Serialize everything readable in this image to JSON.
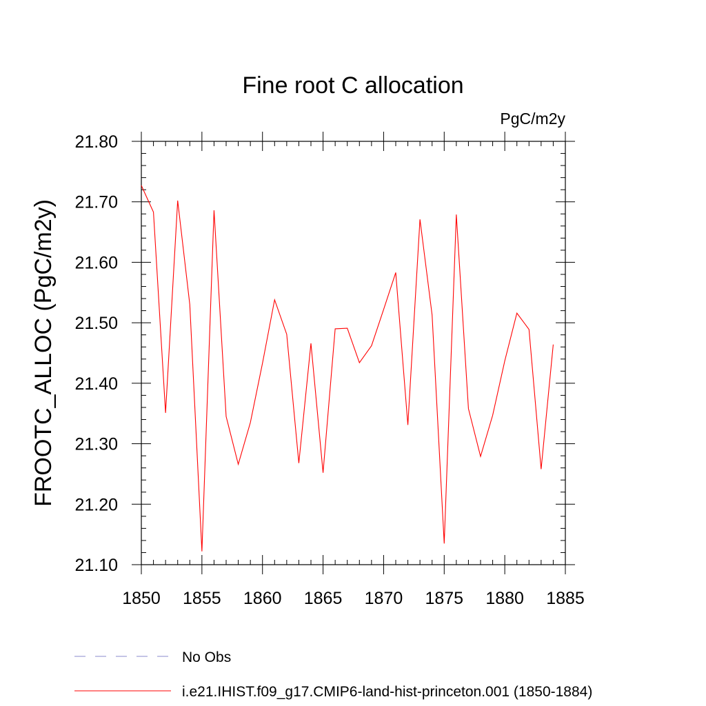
{
  "chart_data": {
    "type": "line",
    "title": "Fine root C allocation",
    "units_label": "PgC/m2y",
    "ylabel": "FROOTC_ALLOC  (PgC/m2y)",
    "xlabel": "",
    "xlim": [
      1850,
      1885
    ],
    "ylim": [
      21.1,
      21.8
    ],
    "x_ticks": [
      "1850",
      "1855",
      "1860",
      "1865",
      "1870",
      "1875",
      "1880",
      "1885"
    ],
    "y_ticks": [
      "21.10",
      "21.20",
      "21.30",
      "21.40",
      "21.50",
      "21.60",
      "21.70",
      "21.80"
    ],
    "grid": false,
    "series": [
      {
        "name": "i.e21.IHIST.f09_g17.CMIP6-land-hist-princeton.001 (1850-1884)",
        "color": "#ff0000",
        "style": "solid",
        "x": [
          1850,
          1851,
          1852,
          1853,
          1854,
          1855,
          1856,
          1857,
          1858,
          1859,
          1860,
          1861,
          1862,
          1863,
          1864,
          1865,
          1866,
          1867,
          1868,
          1869,
          1870,
          1871,
          1872,
          1873,
          1874,
          1875,
          1876,
          1877,
          1878,
          1879,
          1880,
          1881,
          1882,
          1883,
          1884
        ],
        "values": [
          21.727,
          21.683,
          21.351,
          21.702,
          21.53,
          21.122,
          21.686,
          21.345,
          21.266,
          21.335,
          21.433,
          21.538,
          21.481,
          21.268,
          21.466,
          21.252,
          21.49,
          21.491,
          21.434,
          21.462,
          21.522,
          21.583,
          21.331,
          21.671,
          21.513,
          21.135,
          21.679,
          21.358,
          21.279,
          21.347,
          21.437,
          21.516,
          21.489,
          21.258,
          21.464
        ]
      }
    ],
    "legend": {
      "placement": "bottom",
      "entries": [
        {
          "label": "No Obs",
          "color": "#8888cc",
          "style": "dashed"
        },
        {
          "label": "i.e21.IHIST.f09_g17.CMIP6-land-hist-princeton.001 (1850-1884)",
          "color": "#ff0000",
          "style": "solid"
        }
      ]
    }
  }
}
